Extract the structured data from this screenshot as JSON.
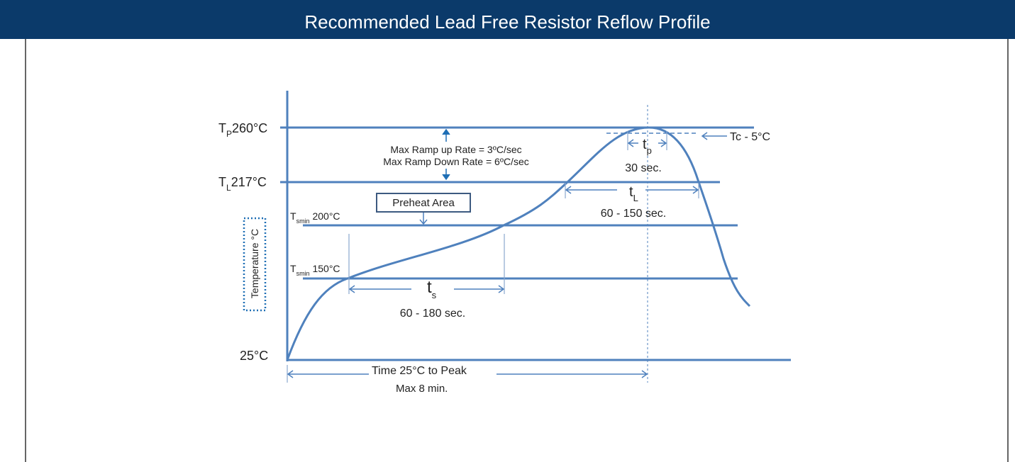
{
  "header": {
    "title": "Recommended Lead Free Resistor Reflow Profile"
  },
  "y_axis": {
    "label": "Temperature °C"
  },
  "levels": [
    {
      "main": "T",
      "sub": "P",
      "rest": "260°C"
    },
    {
      "main": "T",
      "sub": "L",
      "rest": "217°C"
    },
    {
      "main": "T",
      "sub": "smin",
      "rest": " 200°C"
    },
    {
      "main": "T",
      "sub": "smin",
      "rest": " 150°C"
    },
    {
      "main": "",
      "sub": "",
      "rest": "25°C"
    }
  ],
  "ramp": [
    "Max Ramp up Rate = 3ºC/sec",
    "Max Ramp Down Rate = 6ºC/sec"
  ],
  "preheat": "Preheat Area",
  "ts": {
    "main": "t",
    "sub": "s",
    "range": "60 - 180 sec."
  },
  "tl": {
    "main": "t",
    "sub": "L",
    "range": "60 - 150 sec."
  },
  "tp": {
    "main": "t",
    "sub": "p",
    "range": "30 sec."
  },
  "tc": "Tc - 5°C",
  "time": [
    "Time 25°C to Peak",
    "Max 8 min."
  ]
}
